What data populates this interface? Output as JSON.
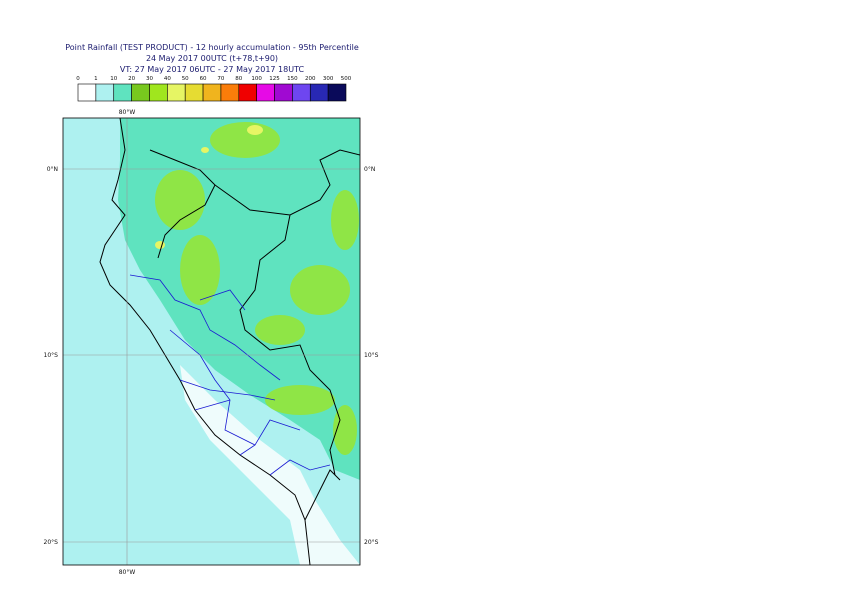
{
  "header": {
    "title": "Point Rainfall (TEST PRODUCT) - 12 hourly accumulation - 95th Percentile",
    "run": "24 May 2017 00UTC (t+78,t+90)",
    "valid": "VT: 27 May 2017 06UTC - 27 May 2017 18UTC"
  },
  "legend": {
    "labels": [
      0,
      1,
      10,
      20,
      30,
      40,
      50,
      60,
      70,
      80,
      100,
      125,
      150,
      200,
      300,
      500
    ],
    "colors": [
      "#ffffff",
      "#aef1f0",
      "#5fe3bf",
      "#78c81e",
      "#a0e61e",
      "#e6f564",
      "#e6dc32",
      "#f0b41e",
      "#fa7d0a",
      "#f00000",
      "#e60ae6",
      "#a00ad2",
      "#6e46f0",
      "#2828b4",
      "#0a0a5a"
    ]
  },
  "map": {
    "lon_label": "80°W",
    "lat_labels": [
      "0°N",
      "10°S",
      "20°S"
    ]
  }
}
